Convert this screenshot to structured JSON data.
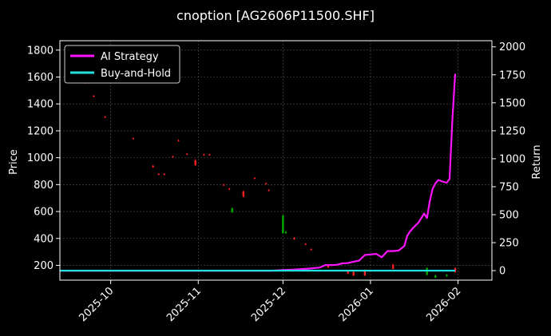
{
  "chart_data": {
    "type": "line",
    "title": "cnoption [AG2606P11500.SHF]",
    "xlabel": "",
    "ylabel_left": "Price",
    "ylabel_right": "Return",
    "grid": true,
    "legend_position": "top-left",
    "x_ticks": [
      "2025-10",
      "2025-11",
      "2025-12",
      "2026-01",
      "2026-02"
    ],
    "y_left_ticks": [
      200,
      400,
      600,
      800,
      1000,
      1200,
      1400,
      1600,
      1800
    ],
    "y_right_ticks": [
      0,
      250,
      500,
      750,
      1000,
      1250,
      1500,
      1750,
      2000
    ],
    "ylim_left": [
      90,
      1870
    ],
    "ylim_right": [
      -85,
      2055
    ],
    "colors": {
      "background": "#000000",
      "grid": "#555555",
      "strategy": "#ff14ff",
      "buyhold": "#22e0e0",
      "up": "#00aa00",
      "down": "#ff2020"
    },
    "series": [
      {
        "name": "AI Strategy",
        "axis": "right",
        "color": "#ff14ff",
        "x": [
          "2025-11-27",
          "2025-12-01",
          "2025-12-05",
          "2025-12-10",
          "2025-12-14",
          "2025-12-16",
          "2025-12-18",
          "2025-12-20",
          "2025-12-22",
          "2025-12-24",
          "2025-12-26",
          "2025-12-28",
          "2025-12-30",
          "2026-01-01",
          "2026-01-03",
          "2026-01-05",
          "2026-01-07",
          "2026-01-09",
          "2026-01-11",
          "2026-01-13",
          "2026-01-14",
          "2026-01-15",
          "2026-01-16",
          "2026-01-18",
          "2026-01-19",
          "2026-01-20",
          "2026-01-21",
          "2026-01-22",
          "2026-01-23",
          "2026-01-24",
          "2026-01-25",
          "2026-01-26",
          "2026-01-28",
          "2026-01-29",
          "2026-01-30",
          "2026-01-31"
        ],
        "values": [
          0,
          5,
          10,
          18,
          28,
          50,
          50,
          52,
          65,
          68,
          80,
          90,
          140,
          145,
          150,
          120,
          175,
          175,
          180,
          220,
          310,
          350,
          380,
          430,
          470,
          510,
          470,
          620,
          730,
          780,
          810,
          800,
          785,
          820,
          1350,
          1760
        ]
      },
      {
        "name": "Buy-and-Hold",
        "axis": "right",
        "color": "#22e0e0",
        "x": [
          "2025-09-01",
          "2026-01-31"
        ],
        "values": [
          0,
          0
        ]
      }
    ],
    "candles": [
      {
        "x": "2025-09-22",
        "open": 1560,
        "close": 1555,
        "high": 1565,
        "low": 1550
      },
      {
        "x": "2025-09-25",
        "open": 1460,
        "close": 1455,
        "high": 1465,
        "low": 1450
      },
      {
        "x": "2025-09-29",
        "open": 1305,
        "close": 1300,
        "high": 1310,
        "low": 1295
      },
      {
        "x": "2025-10-09",
        "open": 1145,
        "close": 1140,
        "high": 1150,
        "low": 1135
      },
      {
        "x": "2025-10-16",
        "open": 940,
        "close": 930,
        "high": 945,
        "low": 925
      },
      {
        "x": "2025-10-18",
        "open": 880,
        "close": 875,
        "high": 885,
        "low": 870
      },
      {
        "x": "2025-10-20",
        "open": 880,
        "close": 875,
        "high": 885,
        "low": 870
      },
      {
        "x": "2025-10-23",
        "open": 1010,
        "close": 1005,
        "high": 1015,
        "low": 1000
      },
      {
        "x": "2025-10-25",
        "open": 1130,
        "close": 1125,
        "high": 1135,
        "low": 1120
      },
      {
        "x": "2025-10-28",
        "open": 1030,
        "close": 1025,
        "high": 1035,
        "low": 1020
      },
      {
        "x": "2025-10-31",
        "open": 980,
        "close": 945,
        "high": 990,
        "low": 940
      },
      {
        "x": "2025-11-03",
        "open": 1025,
        "close": 1020,
        "high": 1030,
        "low": 1015
      },
      {
        "x": "2025-11-05",
        "open": 1025,
        "close": 1020,
        "high": 1030,
        "low": 1015
      },
      {
        "x": "2025-11-10",
        "open": 800,
        "close": 795,
        "high": 805,
        "low": 790
      },
      {
        "x": "2025-11-12",
        "open": 770,
        "close": 765,
        "high": 775,
        "low": 760
      },
      {
        "x": "2025-11-13",
        "open": 595,
        "close": 625,
        "high": 630,
        "low": 590
      },
      {
        "x": "2025-11-17",
        "open": 750,
        "close": 710,
        "high": 755,
        "low": 705
      },
      {
        "x": "2025-11-21",
        "open": 850,
        "close": 845,
        "high": 855,
        "low": 840
      },
      {
        "x": "2025-11-25",
        "open": 810,
        "close": 805,
        "high": 815,
        "low": 800
      },
      {
        "x": "2025-11-26",
        "open": 760,
        "close": 755,
        "high": 765,
        "low": 750
      },
      {
        "x": "2025-12-01",
        "open": 440,
        "close": 570,
        "high": 575,
        "low": 435
      },
      {
        "x": "2025-12-02",
        "open": 440,
        "close": 450,
        "high": 455,
        "low": 435
      },
      {
        "x": "2025-12-05",
        "open": 405,
        "close": 395,
        "high": 410,
        "low": 390
      },
      {
        "x": "2025-12-09",
        "open": 360,
        "close": 355,
        "high": 365,
        "low": 350
      },
      {
        "x": "2025-12-11",
        "open": 320,
        "close": 315,
        "high": 325,
        "low": 310
      },
      {
        "x": "2025-12-17",
        "open": 195,
        "close": 185,
        "high": 200,
        "low": 180
      },
      {
        "x": "2025-12-24",
        "open": 160,
        "close": 140,
        "high": 165,
        "low": 135
      },
      {
        "x": "2025-12-26",
        "open": 150,
        "close": 125,
        "high": 155,
        "low": 120
      },
      {
        "x": "2025-12-30",
        "open": 165,
        "close": 125,
        "high": 170,
        "low": 120
      },
      {
        "x": "2026-01-09",
        "open": 205,
        "close": 175,
        "high": 210,
        "low": 170
      },
      {
        "x": "2026-01-21",
        "open": 130,
        "close": 180,
        "high": 185,
        "low": 125
      },
      {
        "x": "2026-01-24",
        "open": 110,
        "close": 125,
        "high": 130,
        "low": 105
      },
      {
        "x": "2026-01-28",
        "open": 120,
        "close": 130,
        "high": 135,
        "low": 115
      },
      {
        "x": "2026-01-31",
        "open": 180,
        "close": 150,
        "high": 185,
        "low": 145
      }
    ]
  }
}
